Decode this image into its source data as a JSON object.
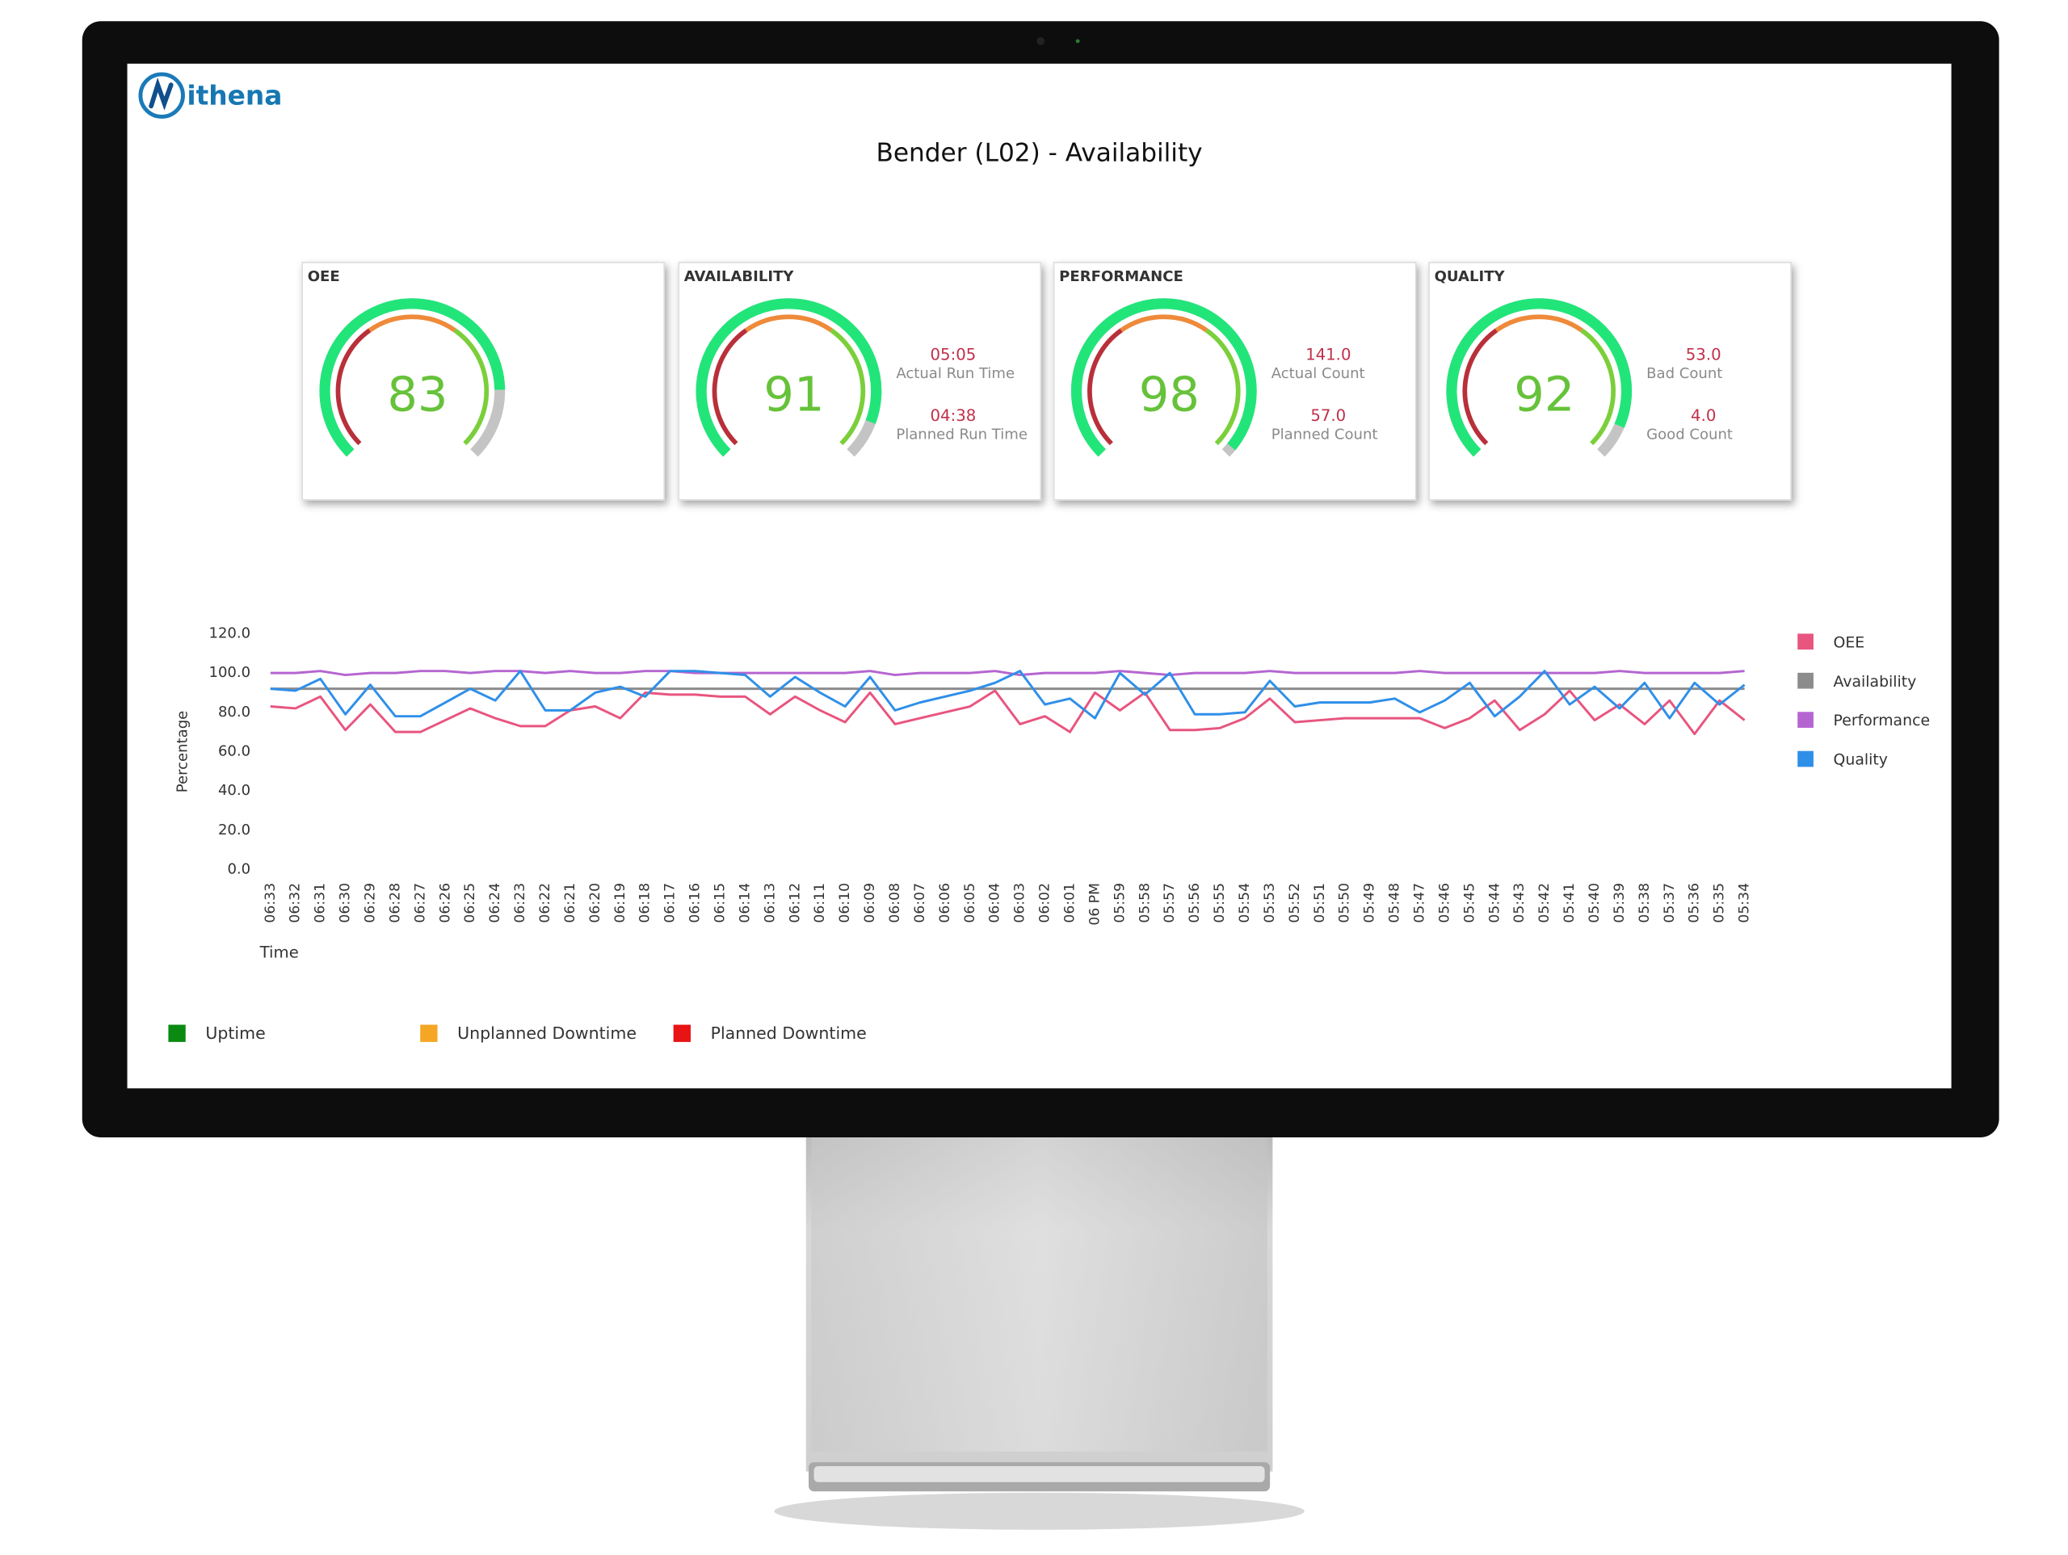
{
  "logo": "ithena",
  "title": "Bender (L02)  -  Availability",
  "gauge_range": [
    0,
    100
  ],
  "cards": [
    {
      "label": "OEE",
      "value": 83,
      "metrics": []
    },
    {
      "label": "AVAILABILITY",
      "value": 91,
      "metrics": [
        {
          "value": "05:05",
          "label": "Actual Run Time"
        },
        {
          "value": "04:38",
          "label": "Planned Run Time"
        }
      ]
    },
    {
      "label": "PERFORMANCE",
      "value": 98,
      "metrics": [
        {
          "value": "141.0",
          "label": "Actual Count"
        },
        {
          "value": "57.0",
          "label": "Planned Count"
        }
      ]
    },
    {
      "label": "QUALITY",
      "value": 92,
      "metrics": [
        {
          "value": "53.0",
          "label": "Bad Count"
        },
        {
          "value": "4.0",
          "label": "Good Count"
        }
      ]
    }
  ],
  "chart_data": {
    "type": "line",
    "xlabel": "Time",
    "ylabel": "Percentage",
    "ylim": [
      0,
      120
    ],
    "yticks": [
      {
        "value": 0,
        "label": "0.0"
      },
      {
        "value": 20,
        "label": "20.0"
      },
      {
        "value": 40,
        "label": "40.0"
      },
      {
        "value": 60,
        "label": "60.0"
      },
      {
        "value": 80,
        "label": "80.0"
      },
      {
        "value": 100,
        "label": "100.0"
      },
      {
        "value": 120,
        "label": "120.0"
      }
    ],
    "categories": [
      "06:33",
      "06:32",
      "06:31",
      "06:30",
      "06:29",
      "06:28",
      "06:27",
      "06:26",
      "06:25",
      "06:24",
      "06:23",
      "06:22",
      "06:21",
      "06:20",
      "06:19",
      "06:18",
      "06:17",
      "06:16",
      "06:15",
      "06:14",
      "06:13",
      "06:12",
      "06:11",
      "06:10",
      "06:09",
      "06:08",
      "06:07",
      "06:06",
      "06:05",
      "06:04",
      "06:03",
      "06:02",
      "06:01",
      "06 PM",
      "05:59",
      "05:58",
      "05:57",
      "05:56",
      "05:55",
      "05:54",
      "05:53",
      "05:52",
      "05:51",
      "05:50",
      "05:49",
      "05:48",
      "05:47",
      "05:46",
      "05:45",
      "05:44",
      "05:43",
      "05:42",
      "05:41",
      "05:40",
      "05:39",
      "05:38",
      "05:37",
      "05:36",
      "05:35",
      "05:34"
    ],
    "legend": "right",
    "series": [
      {
        "name": "OEE",
        "color": "#e8557f",
        "values": [
          83,
          82,
          88,
          71,
          84,
          70,
          70,
          76,
          82,
          77,
          73,
          73,
          81,
          83,
          77,
          90,
          89,
          89,
          88,
          88,
          79,
          88,
          81,
          75,
          90,
          74,
          77,
          80,
          83,
          91,
          74,
          78,
          70,
          90,
          81,
          90,
          71,
          71,
          72,
          77,
          87,
          75,
          76,
          77,
          77,
          77,
          77,
          72,
          77,
          86,
          71,
          79,
          91,
          76,
          84,
          74,
          86,
          69,
          86,
          76
        ]
      },
      {
        "name": "Availability",
        "color": "#8c8c8c",
        "values": [
          92,
          92,
          92,
          92,
          92,
          92,
          92,
          92,
          92,
          92,
          92,
          92,
          92,
          92,
          92,
          92,
          92,
          92,
          92,
          92,
          92,
          92,
          92,
          92,
          92,
          92,
          92,
          92,
          92,
          92,
          92,
          92,
          92,
          92,
          92,
          92,
          92,
          92,
          92,
          92,
          92,
          92,
          92,
          92,
          92,
          92,
          92,
          92,
          92,
          92,
          92,
          92,
          92,
          92,
          92,
          92,
          92,
          92,
          92,
          92
        ]
      },
      {
        "name": "Performance",
        "color": "#b565d0",
        "values": [
          100,
          100,
          101,
          99,
          100,
          100,
          101,
          101,
          100,
          101,
          101,
          100,
          101,
          100,
          100,
          101,
          101,
          100,
          100,
          100,
          100,
          100,
          100,
          100,
          101,
          99,
          100,
          100,
          100,
          101,
          99,
          100,
          100,
          100,
          101,
          100,
          99,
          100,
          100,
          100,
          101,
          100,
          100,
          100,
          100,
          100,
          101,
          100,
          100,
          100,
          100,
          100,
          100,
          100,
          101,
          100,
          100,
          100,
          100,
          101
        ]
      },
      {
        "name": "Quality",
        "color": "#2f8fe8",
        "values": [
          92,
          91,
          97,
          79,
          94,
          78,
          78,
          85,
          92,
          86,
          101,
          81,
          81,
          90,
          93,
          88,
          101,
          101,
          100,
          99,
          88,
          98,
          90,
          83,
          98,
          81,
          85,
          88,
          91,
          95,
          101,
          84,
          87,
          77,
          100,
          89,
          100,
          79,
          79,
          80,
          96,
          83,
          85,
          85,
          85,
          87,
          80,
          86,
          95,
          78,
          88,
          101,
          84,
          93,
          82,
          95,
          77,
          95,
          84,
          94
        ]
      }
    ]
  },
  "status_legend": [
    {
      "name": "Uptime",
      "color": "#0b8a12"
    },
    {
      "name": "Unplanned Downtime",
      "color": "#f5a623"
    },
    {
      "name": "Planned Downtime",
      "color": "#e81313"
    }
  ]
}
